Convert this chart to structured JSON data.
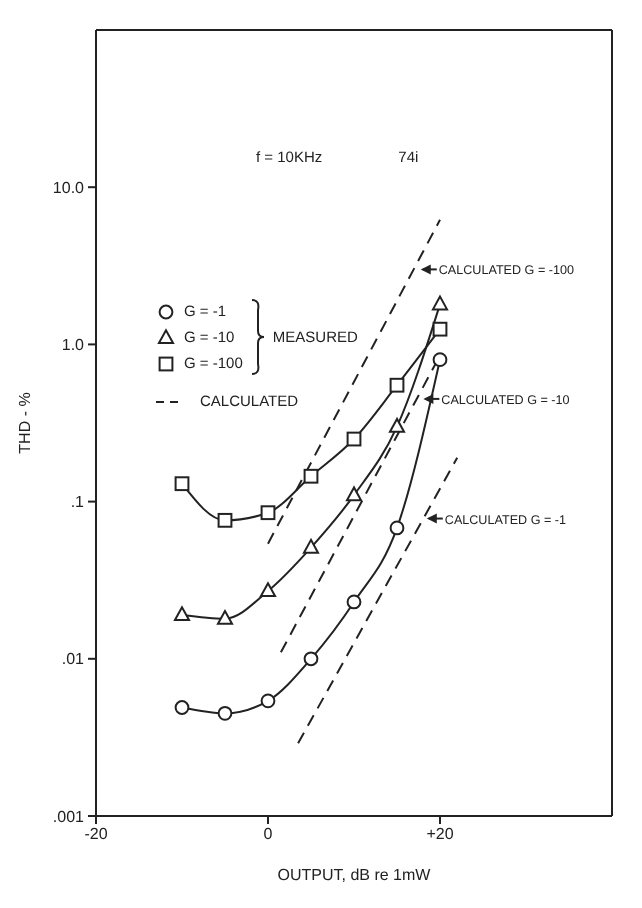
{
  "chart_data": {
    "type": "line",
    "xlabel": "OUTPUT, dB re 1mW",
    "ylabel": "THD - %",
    "legend_title": "MEASURED",
    "log": "y",
    "xlim": [
      -20,
      40
    ],
    "xticks": [
      -20,
      0,
      {
        "value": 20,
        "label": "+20"
      }
    ],
    "ylim": [
      0.001,
      100
    ],
    "yticks": [
      {
        "value": 0.001,
        "label": ".001"
      },
      {
        "value": 0.01,
        "label": ".01"
      },
      {
        "value": 0.1,
        "label": ".1"
      },
      {
        "value": 1,
        "label": "1.0"
      },
      {
        "value": 10,
        "label": "10.0"
      }
    ],
    "grid": false,
    "legend": "top left",
    "line_style": "solid",
    "series": [
      {
        "name": "G = -1",
        "color": "#222222",
        "marker": "circle",
        "x": [
          -10,
          -5,
          0,
          5,
          10,
          15,
          20
        ],
        "values": [
          0.0049,
          0.0045,
          0.0054,
          0.01,
          0.023,
          0.068,
          0.8
        ]
      },
      {
        "name": "G = -10",
        "color": "#222222",
        "marker": "triangle",
        "x": [
          -10,
          -5,
          0,
          5,
          10,
          15,
          20
        ],
        "values": [
          0.019,
          0.018,
          0.027,
          0.051,
          0.11,
          0.3,
          1.8
        ]
      },
      {
        "name": "G = -100",
        "color": "#222222",
        "marker": "square",
        "x": [
          -10,
          -5,
          0,
          5,
          10,
          15,
          20
        ],
        "values": [
          0.13,
          0.076,
          0.085,
          0.145,
          0.25,
          0.55,
          1.25
        ]
      },
      {
        "name": "CALCULATED",
        "color": "#222222",
        "marker": "none",
        "line_style": "dashed",
        "x": [
          0,
          20
        ],
        "values": [
          0.054,
          6.2
        ]
      },
      {
        "color": "#222222",
        "marker": "none",
        "line_style": "dashed",
        "x": [
          1.5,
          20
        ],
        "values": [
          0.011,
          0.85
        ]
      },
      {
        "color": "#222222",
        "marker": "none",
        "line_style": "dashed",
        "x": [
          3.5,
          22
        ],
        "values": [
          0.0029,
          0.19
        ]
      }
    ],
    "annotations": [
      "f = 10KHz",
      "74i",
      {
        "text": "CALCULATED G = -100",
        "x": 17.3,
        "y": 3
      },
      {
        "text": "CALCULATED G = -10",
        "x": 17.6,
        "y": 0.45
      },
      {
        "text": "CALCULATED G = -1",
        "x": 18,
        "y": 0.078
      }
    ]
  }
}
